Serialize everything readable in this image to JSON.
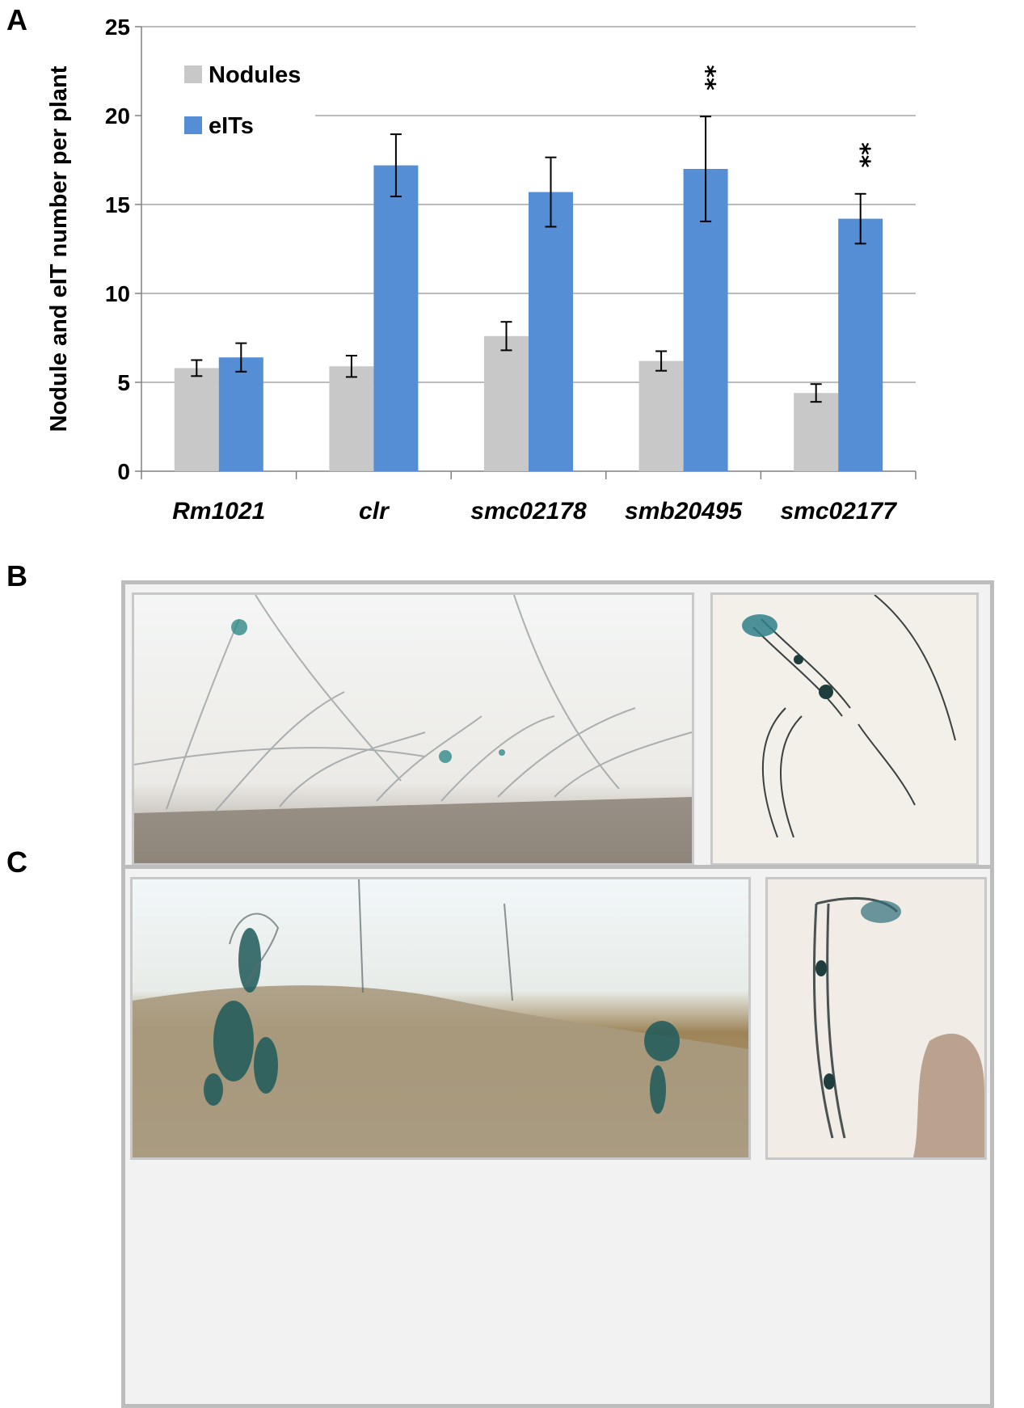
{
  "panels": {
    "a": "A",
    "b": "B",
    "c": "C"
  },
  "chart_data": {
    "type": "bar",
    "categories": [
      "Rm1021",
      "clr",
      "smc02178",
      "smb20495",
      "smc02177"
    ],
    "series": [
      {
        "name": "Nodules",
        "color": "#c8c8c8",
        "values": [
          5.8,
          5.9,
          7.6,
          6.2,
          4.4
        ],
        "errors": [
          0.45,
          0.6,
          0.8,
          0.55,
          0.5
        ]
      },
      {
        "name": "eITs",
        "color": "#558ed5",
        "values": [
          6.4,
          17.2,
          15.7,
          17.0,
          14.2
        ],
        "errors": [
          0.8,
          1.75,
          1.95,
          2.95,
          1.4
        ]
      }
    ],
    "significance": [
      {
        "category": "smb20495",
        "series": "eITs",
        "mark": "**"
      },
      {
        "category": "smc02177",
        "series": "eITs",
        "mark": "**"
      }
    ],
    "ylabel": "Nodule and eIT number per plant",
    "ylim": [
      0,
      25
    ],
    "yticks": [
      0,
      5,
      10,
      15,
      20,
      25
    ],
    "grid": true,
    "legend": "top-left"
  }
}
